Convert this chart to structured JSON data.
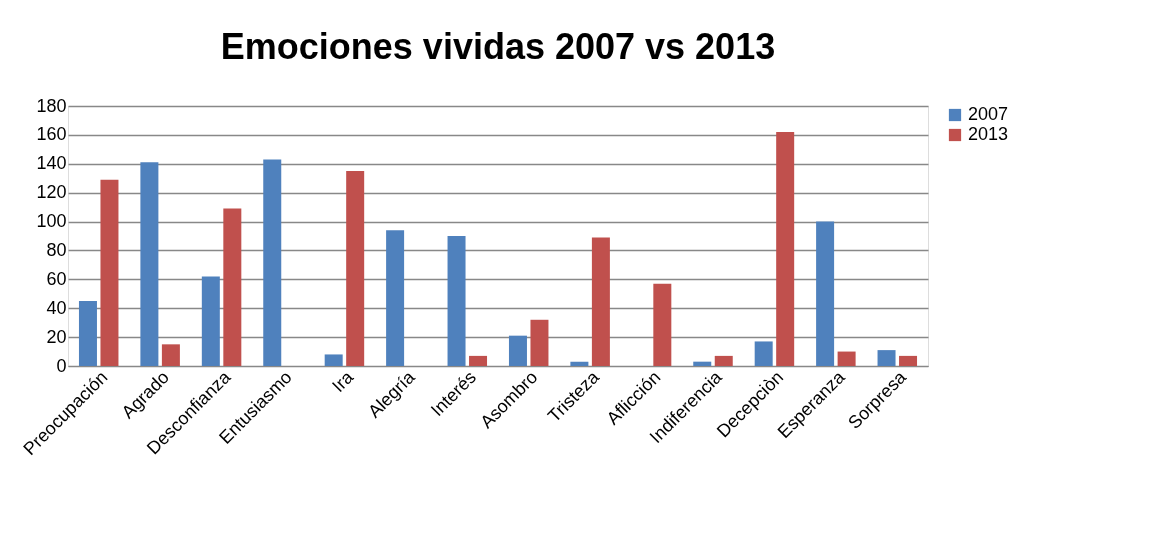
{
  "chart_data": {
    "type": "bar",
    "title": "Emociones vividas 2007 vs 2013",
    "categories": [
      "Preocupación",
      "Agrado",
      "Desconfianza",
      "Entusiasmo",
      "Ira",
      "Alegría",
      "Interés",
      "Asombro",
      "Tristeza",
      "Aflicción",
      "Indiferencia",
      "Decepciòn",
      "Esperanza",
      "Sorpresa"
    ],
    "series": [
      {
        "name": "2007",
        "color": "#4f81bd",
        "values": [
          45,
          141,
          62,
          143,
          8,
          94,
          90,
          21,
          3,
          0,
          3,
          17,
          100,
          11
        ]
      },
      {
        "name": "2013",
        "color": "#c0504d",
        "values": [
          129,
          15,
          109,
          0,
          135,
          0,
          7,
          32,
          89,
          57,
          7,
          162,
          10,
          7
        ]
      }
    ],
    "ylim": [
      0,
      180
    ],
    "yticks": [
      0,
      20,
      40,
      60,
      80,
      100,
      120,
      140,
      160,
      180
    ],
    "grid": "y",
    "legend": "right"
  }
}
